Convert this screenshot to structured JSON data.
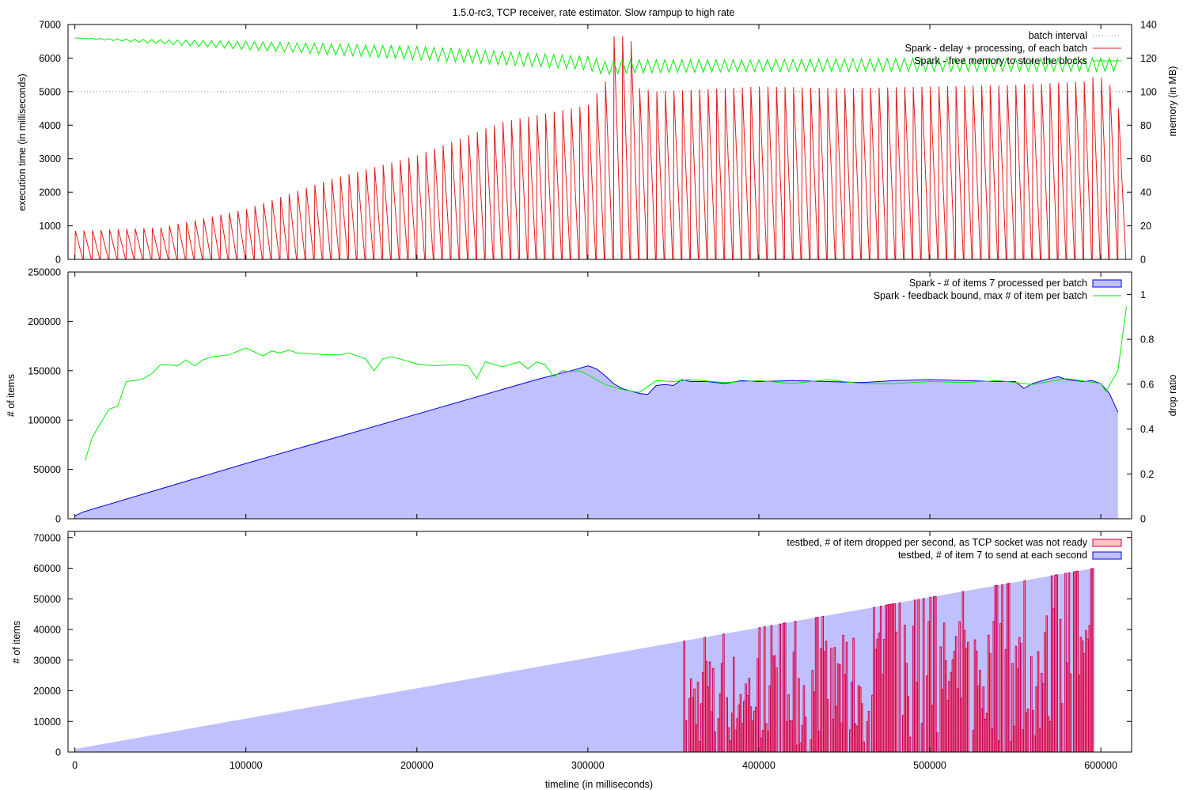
{
  "figure": {
    "title": "1.5.0-rc3, TCP receiver, rate estimator. Slow rampup to high rate",
    "xlabel": "timeline (in milliseconds)"
  },
  "chart_data": [
    {
      "id": "top",
      "type": "line",
      "ylabel": "execution time (in milliseconds)",
      "y2label": "memory (in MB)",
      "xlim": [
        -4000,
        618000
      ],
      "ylim": [
        0,
        7000
      ],
      "y2lim": [
        0,
        140
      ],
      "yticks": [
        0,
        1000,
        2000,
        3000,
        4000,
        5000,
        6000,
        7000
      ],
      "y2ticks": [
        0,
        20,
        40,
        60,
        80,
        100,
        120,
        140
      ],
      "legend": [
        "batch interval",
        "Spark - delay + processing, of each batch",
        "Spark - free memory to store the blocks"
      ],
      "legend_position": "top-right",
      "series": [
        {
          "name": "batch interval",
          "style": "dotted",
          "color": "#888888",
          "y": 5000
        },
        {
          "name": "Spark - delay + processing, of each batch",
          "color": "#e41a1c",
          "batch_interval_ms": 5000,
          "peak_envelope": {
            "x": [
              0,
              50000,
              100000,
              150000,
              200000,
              250000,
              300000,
              310000,
              315000,
              320000,
              325000,
              330000,
              340000,
              400000,
              450000,
              500000,
              550000,
              590000,
              598000,
              605000,
              610000
            ],
            "y": [
              850,
              950,
              1500,
              2400,
              3100,
              4100,
              4600,
              5300,
              6650,
              6650,
              6500,
              5100,
              5000,
              5150,
              5100,
              5150,
              5200,
              5300,
              5500,
              5200,
              4500
            ]
          }
        },
        {
          "name": "Spark - free memory to store the blocks",
          "color": "#00ee00",
          "axis": "y2",
          "upper_envelope": {
            "x": [
              0,
              100000,
              200000,
              300000,
              310000,
              320000,
              400000,
              500000,
              610000
            ],
            "y": [
              132,
              130,
              127,
              121,
              118,
              119,
              119,
              120,
              120
            ]
          },
          "lower_envelope": {
            "x": [
              0,
              100000,
              200000,
              300000,
              310000,
              320000,
              400000,
              500000,
              610000
            ],
            "y": [
              132,
              125,
              119,
              113,
              110,
              111,
              112,
              112,
              112
            ]
          }
        }
      ]
    },
    {
      "id": "middle",
      "type": "area",
      "ylabel": "# of items",
      "y2label": "drop ratio",
      "xlim": [
        -4000,
        618000
      ],
      "ylim": [
        0,
        250000
      ],
      "y2lim": [
        0,
        1.1
      ],
      "yticks": [
        0,
        50000,
        100000,
        150000,
        200000,
        250000
      ],
      "y2ticks": [
        0,
        0.2,
        0.4,
        0.6,
        0.8,
        1
      ],
      "legend": [
        "Spark - # of items 7 processed per batch",
        "Spark - feedback bound, max # of item per batch"
      ],
      "legend_position": "top-right",
      "series": [
        {
          "name": "Spark - # of items 7 processed per batch",
          "fill": "#c0c0ff",
          "color": "#0000dd",
          "x": [
            0,
            5000,
            100000,
            200000,
            270000,
            290000,
            300000,
            305000,
            310000,
            315000,
            320000,
            330000,
            335000,
            340000,
            345000,
            350000,
            355000,
            360000,
            370000,
            380000,
            390000,
            400000,
            420000,
            440000,
            460000,
            480000,
            500000,
            520000,
            540000,
            550000,
            555000,
            560000,
            570000,
            575000,
            580000,
            590000,
            595000,
            600000,
            605000,
            610000
          ],
          "y": [
            3000,
            7000,
            56000,
            106000,
            141000,
            150000,
            155000,
            152000,
            145000,
            137000,
            132000,
            127000,
            126000,
            135000,
            136000,
            135000,
            141000,
            139000,
            139000,
            137000,
            140000,
            139000,
            140000,
            139000,
            138000,
            140000,
            141000,
            140000,
            139000,
            139000,
            132000,
            137000,
            142000,
            144000,
            141000,
            139000,
            140000,
            137000,
            127000,
            108000
          ]
        },
        {
          "name": "Spark - feedback bound, max # of item per batch",
          "color": "#00ee00",
          "x": [
            6000,
            10000,
            15000,
            20000,
            25000,
            30000,
            35000,
            40000,
            45000,
            50000,
            55000,
            60000,
            65000,
            70000,
            75000,
            80000,
            90000,
            100000,
            110000,
            115000,
            120000,
            125000,
            130000,
            140000,
            150000,
            155000,
            160000,
            170000,
            175000,
            180000,
            185000,
            190000,
            200000,
            210000,
            220000,
            225000,
            230000,
            235000,
            240000,
            250000,
            260000,
            265000,
            270000,
            275000,
            280000,
            285000,
            290000,
            295000,
            300000,
            310000,
            320000,
            330000,
            340000,
            350000,
            360000,
            380000,
            400000,
            420000,
            440000,
            460000,
            480000,
            500000,
            520000,
            540000,
            560000,
            580000,
            600000,
            603000,
            606000,
            610000,
            615000
          ],
          "y": [
            59000,
            82000,
            97000,
            111000,
            114000,
            139000,
            140000,
            142000,
            147000,
            156000,
            156000,
            155000,
            161000,
            155000,
            161000,
            164000,
            166000,
            173000,
            165000,
            170000,
            168000,
            171000,
            168000,
            167000,
            166000,
            166000,
            168000,
            162000,
            150000,
            162000,
            164000,
            162000,
            157000,
            155000,
            156000,
            156000,
            155000,
            142000,
            159000,
            154000,
            159000,
            152000,
            159000,
            156000,
            144000,
            150000,
            149000,
            150000,
            146000,
            136000,
            131000,
            128000,
            140000,
            139000,
            141000,
            138000,
            140000,
            137000,
            141000,
            137000,
            137000,
            139000,
            138000,
            140000,
            136000,
            142000,
            137000,
            129000,
            138000,
            150000,
            215000
          ]
        }
      ]
    },
    {
      "id": "bottom",
      "type": "bar",
      "ylabel": "# of items",
      "xlim": [
        -4000,
        618000
      ],
      "ylim": [
        0,
        72000
      ],
      "yticks": [
        0,
        10000,
        20000,
        30000,
        40000,
        50000,
        60000,
        70000
      ],
      "xticks": [
        0,
        100000,
        200000,
        300000,
        400000,
        500000,
        600000
      ],
      "legend": [
        "testbed, # of item dropped per second, as TCP socket was not ready",
        "testbed, # of item 7 to send at each second"
      ],
      "legend_position": "top-right",
      "series": [
        {
          "name": "testbed, # of item dropped per second, as TCP socket was not ready",
          "fill": "#ffc0c0",
          "color": "#cc0055",
          "drop_start_x": 356000,
          "drop_end_x": 595000,
          "max_x": 596000,
          "max_y": 60000
        },
        {
          "name": "testbed, # of item 7 to send at each second",
          "fill": "#c0c0ff",
          "color": "#0000dd",
          "x": [
            0,
            596000
          ],
          "y": [
            1000,
            60000
          ]
        }
      ]
    }
  ]
}
